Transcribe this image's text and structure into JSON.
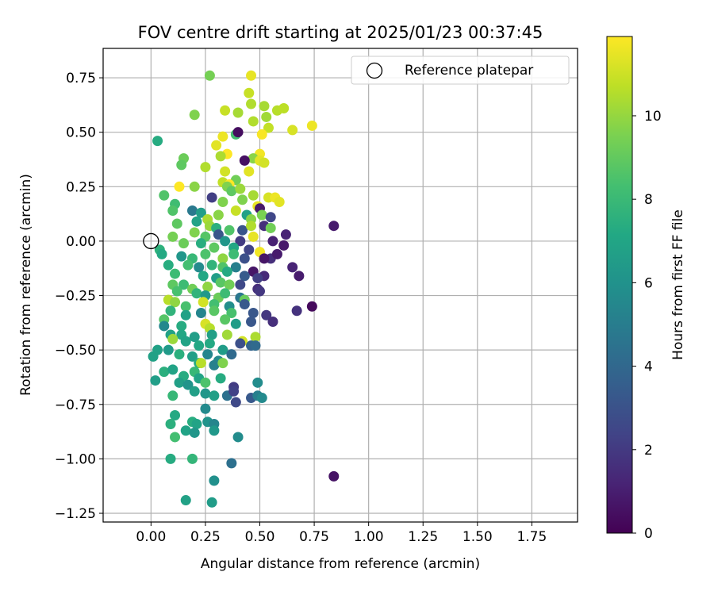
{
  "chart_data": {
    "type": "scatter",
    "title": "FOV centre drift starting at 2025/01/23 00:37:45",
    "xlabel": "Angular distance from reference (arcmin)",
    "ylabel": "Rotation from reference (arcmin)",
    "xlim": [
      -0.22,
      1.96
    ],
    "ylim": [
      -1.29,
      0.885
    ],
    "xticks": [
      0.0,
      0.25,
      0.5,
      0.75,
      1.0,
      1.25,
      1.5,
      1.75
    ],
    "xtick_labels": [
      "0.00",
      "0.25",
      "0.50",
      "0.75",
      "1.00",
      "1.25",
      "1.50",
      "1.75"
    ],
    "yticks": [
      0.75,
      0.5,
      0.25,
      0.0,
      -0.25,
      -0.5,
      -0.75,
      -1.0,
      -1.25
    ],
    "ytick_labels": [
      "0.75",
      "0.50",
      "0.25",
      "0.00",
      "−0.25",
      "−0.50",
      "−0.75",
      "−1.00",
      "−1.25"
    ],
    "grid": true,
    "legend": {
      "position": "top-right",
      "entries": [
        "Reference platepar"
      ]
    },
    "reference_point": {
      "x": 0.0,
      "y": 0.0,
      "label": "Reference platepar"
    },
    "colorbar": {
      "label": "Hours from first FF file",
      "colormap": "viridis",
      "range": [
        0,
        11.9
      ],
      "ticks": [
        0,
        2,
        4,
        6,
        8,
        10
      ],
      "tick_labels": [
        "0",
        "2",
        "4",
        "6",
        "8",
        "10"
      ]
    },
    "points": [
      [
        0.46,
        0.76,
        11.5
      ],
      [
        0.27,
        0.76,
        9.4
      ],
      [
        0.45,
        0.68,
        10.9
      ],
      [
        0.46,
        0.63,
        10.5
      ],
      [
        0.52,
        0.62,
        10.3
      ],
      [
        0.58,
        0.6,
        10.6
      ],
      [
        0.61,
        0.61,
        10.7
      ],
      [
        0.34,
        0.6,
        10.9
      ],
      [
        0.53,
        0.57,
        10.2
      ],
      [
        0.2,
        0.58,
        9.6
      ],
      [
        0.4,
        0.59,
        10.3
      ],
      [
        0.47,
        0.55,
        10.5
      ],
      [
        0.54,
        0.52,
        10.8
      ],
      [
        0.65,
        0.51,
        11.2
      ],
      [
        0.74,
        0.53,
        11.6
      ],
      [
        0.51,
        0.49,
        11.8
      ],
      [
        0.39,
        0.49,
        8.3
      ],
      [
        0.4,
        0.5,
        0.4
      ],
      [
        0.03,
        0.46,
        7.3
      ],
      [
        0.33,
        0.48,
        11.6
      ],
      [
        0.3,
        0.44,
        11.4
      ],
      [
        0.35,
        0.4,
        11.9
      ],
      [
        0.32,
        0.39,
        10.4
      ],
      [
        0.5,
        0.4,
        11.7
      ],
      [
        0.47,
        0.38,
        9.8
      ],
      [
        0.43,
        0.37,
        0.5
      ],
      [
        0.5,
        0.37,
        11.4
      ],
      [
        0.52,
        0.36,
        11.1
      ],
      [
        0.15,
        0.38,
        9.2
      ],
      [
        0.14,
        0.35,
        8.9
      ],
      [
        0.25,
        0.34,
        10.5
      ],
      [
        0.34,
        0.32,
        11.1
      ],
      [
        0.45,
        0.32,
        11.4
      ],
      [
        0.39,
        0.28,
        9.3
      ],
      [
        0.33,
        0.27,
        10.8
      ],
      [
        0.36,
        0.26,
        11.9
      ],
      [
        0.13,
        0.25,
        11.9
      ],
      [
        0.2,
        0.25,
        9.8
      ],
      [
        0.35,
        0.25,
        9.6
      ],
      [
        0.37,
        0.23,
        8.9
      ],
      [
        0.41,
        0.24,
        10.1
      ],
      [
        0.47,
        0.21,
        10.3
      ],
      [
        0.54,
        0.2,
        11.2
      ],
      [
        0.57,
        0.2,
        11.6
      ],
      [
        0.59,
        0.18,
        11.4
      ],
      [
        0.06,
        0.21,
        8.6
      ],
      [
        0.28,
        0.2,
        2.2
      ],
      [
        0.33,
        0.18,
        9.6
      ],
      [
        0.42,
        0.19,
        9.6
      ],
      [
        0.49,
        0.16,
        11.5
      ],
      [
        0.5,
        0.15,
        0.8
      ],
      [
        0.11,
        0.17,
        8.2
      ],
      [
        0.1,
        0.14,
        8.6
      ],
      [
        0.19,
        0.14,
        4.8
      ],
      [
        0.23,
        0.13,
        6.6
      ],
      [
        0.26,
        0.1,
        10.4
      ],
      [
        0.31,
        0.12,
        9.8
      ],
      [
        0.39,
        0.14,
        10.9
      ],
      [
        0.44,
        0.12,
        6.8
      ],
      [
        0.46,
        0.1,
        9.8
      ],
      [
        0.51,
        0.12,
        9.5
      ],
      [
        0.55,
        0.11,
        2.5
      ],
      [
        0.12,
        0.08,
        8.9
      ],
      [
        0.21,
        0.09,
        6.9
      ],
      [
        0.27,
        0.07,
        10.1
      ],
      [
        0.3,
        0.06,
        7.5
      ],
      [
        0.36,
        0.05,
        8.6
      ],
      [
        0.42,
        0.05,
        3.1
      ],
      [
        0.46,
        0.07,
        10.5
      ],
      [
        0.52,
        0.07,
        1.6
      ],
      [
        0.55,
        0.06,
        9.3
      ],
      [
        0.62,
        0.03,
        1.2
      ],
      [
        0.84,
        0.07,
        0.9
      ],
      [
        0.1,
        0.02,
        9.4
      ],
      [
        0.2,
        0.04,
        9.6
      ],
      [
        0.25,
        0.02,
        8.7
      ],
      [
        0.31,
        0.03,
        3.2
      ],
      [
        0.34,
        0.0,
        6.2
      ],
      [
        0.41,
        0.0,
        2.1
      ],
      [
        0.47,
        0.02,
        11.5
      ],
      [
        0.56,
        0.0,
        1.1
      ],
      [
        0.61,
        -0.02,
        0.8
      ],
      [
        0.15,
        -0.01,
        9.2
      ],
      [
        0.23,
        -0.01,
        7.4
      ],
      [
        0.29,
        -0.03,
        8.9
      ],
      [
        0.38,
        -0.03,
        7.1
      ],
      [
        0.45,
        -0.04,
        2.4
      ],
      [
        0.5,
        -0.05,
        11.7
      ],
      [
        0.55,
        -0.08,
        1.6
      ],
      [
        0.04,
        -0.04,
        7.6
      ],
      [
        0.05,
        -0.06,
        7.2
      ],
      [
        0.14,
        -0.07,
        6.2
      ],
      [
        0.19,
        -0.08,
        7.9
      ],
      [
        0.25,
        -0.06,
        8.5
      ],
      [
        0.33,
        -0.08,
        9.9
      ],
      [
        0.38,
        -0.06,
        8.1
      ],
      [
        0.43,
        -0.08,
        2.9
      ],
      [
        0.52,
        -0.08,
        0.7
      ],
      [
        0.58,
        -0.06,
        0.9
      ],
      [
        0.08,
        -0.11,
        7.4
      ],
      [
        0.17,
        -0.11,
        8.3
      ],
      [
        0.22,
        -0.12,
        5.6
      ],
      [
        0.28,
        -0.11,
        7.7
      ],
      [
        0.33,
        -0.12,
        8.6
      ],
      [
        0.39,
        -0.12,
        5.1
      ],
      [
        0.47,
        -0.14,
        0.7
      ],
      [
        0.52,
        -0.16,
        1.4
      ],
      [
        0.65,
        -0.12,
        1.2
      ],
      [
        0.68,
        -0.16,
        0.9
      ],
      [
        0.11,
        -0.15,
        8.1
      ],
      [
        0.24,
        -0.16,
        7.1
      ],
      [
        0.3,
        -0.17,
        6.6
      ],
      [
        0.35,
        -0.14,
        7.2
      ],
      [
        0.43,
        -0.16,
        3.4
      ],
      [
        0.49,
        -0.17,
        2.2
      ],
      [
        0.1,
        -0.2,
        8.9
      ],
      [
        0.15,
        -0.2,
        8.1
      ],
      [
        0.19,
        -0.22,
        9.3
      ],
      [
        0.26,
        -0.21,
        9.9
      ],
      [
        0.32,
        -0.19,
        8.8
      ],
      [
        0.36,
        -0.2,
        9.3
      ],
      [
        0.41,
        -0.2,
        2.6
      ],
      [
        0.49,
        -0.22,
        1.6
      ],
      [
        0.5,
        -0.23,
        1.9
      ],
      [
        0.12,
        -0.23,
        8.4
      ],
      [
        0.21,
        -0.24,
        7.7
      ],
      [
        0.25,
        -0.25,
        6.3
      ],
      [
        0.31,
        -0.26,
        9.2
      ],
      [
        0.34,
        -0.24,
        8.1
      ],
      [
        0.41,
        -0.26,
        4.7
      ],
      [
        0.43,
        -0.27,
        9.1
      ],
      [
        0.08,
        -0.27,
        10.6
      ],
      [
        0.11,
        -0.28,
        9.9
      ],
      [
        0.16,
        -0.3,
        8.4
      ],
      [
        0.24,
        -0.28,
        11.1
      ],
      [
        0.29,
        -0.29,
        8.3
      ],
      [
        0.36,
        -0.3,
        5.8
      ],
      [
        0.43,
        -0.29,
        3.3
      ],
      [
        0.67,
        -0.32,
        1.7
      ],
      [
        0.74,
        -0.3,
        0.3
      ],
      [
        0.09,
        -0.32,
        7.7
      ],
      [
        0.16,
        -0.34,
        6.8
      ],
      [
        0.23,
        -0.33,
        5.4
      ],
      [
        0.29,
        -0.32,
        8.8
      ],
      [
        0.37,
        -0.33,
        8.4
      ],
      [
        0.47,
        -0.33,
        3.2
      ],
      [
        0.53,
        -0.34,
        1.9
      ],
      [
        0.56,
        -0.37,
        1.6
      ],
      [
        0.06,
        -0.36,
        8.7
      ],
      [
        0.06,
        -0.39,
        5.5
      ],
      [
        0.14,
        -0.39,
        7.3
      ],
      [
        0.25,
        -0.38,
        11.2
      ],
      [
        0.27,
        -0.4,
        10.6
      ],
      [
        0.34,
        -0.36,
        8.8
      ],
      [
        0.39,
        -0.38,
        6.5
      ],
      [
        0.46,
        -0.37,
        3.2
      ],
      [
        0.09,
        -0.43,
        6.8
      ],
      [
        0.14,
        -0.43,
        7.1
      ],
      [
        0.2,
        -0.44,
        6.6
      ],
      [
        0.28,
        -0.43,
        6.7
      ],
      [
        0.35,
        -0.43,
        10.2
      ],
      [
        0.42,
        -0.46,
        11.1
      ],
      [
        0.48,
        -0.44,
        10.4
      ],
      [
        0.1,
        -0.45,
        10.1
      ],
      [
        0.16,
        -0.46,
        6.9
      ],
      [
        0.22,
        -0.48,
        7.1
      ],
      [
        0.27,
        -0.47,
        7.2
      ],
      [
        0.33,
        -0.5,
        6.5
      ],
      [
        0.41,
        -0.47,
        2.9
      ],
      [
        0.46,
        -0.48,
        3.8
      ],
      [
        0.48,
        -0.48,
        4.1
      ],
      [
        0.01,
        -0.53,
        6.8
      ],
      [
        0.03,
        -0.5,
        6.8
      ],
      [
        0.08,
        -0.5,
        6.4
      ],
      [
        0.13,
        -0.52,
        7.5
      ],
      [
        0.19,
        -0.53,
        6.7
      ],
      [
        0.22,
        -0.56,
        7.3
      ],
      [
        0.26,
        -0.52,
        5.4
      ],
      [
        0.31,
        -0.55,
        5.6
      ],
      [
        0.37,
        -0.52,
        4.1
      ],
      [
        0.06,
        -0.6,
        7.5
      ],
      [
        0.1,
        -0.59,
        6.9
      ],
      [
        0.15,
        -0.62,
        7.3
      ],
      [
        0.2,
        -0.6,
        7.9
      ],
      [
        0.23,
        -0.56,
        10.6
      ],
      [
        0.29,
        -0.57,
        5.2
      ],
      [
        0.33,
        -0.56,
        9.6
      ],
      [
        0.02,
        -0.64,
        6.6
      ],
      [
        0.13,
        -0.65,
        6.7
      ],
      [
        0.17,
        -0.66,
        6.1
      ],
      [
        0.22,
        -0.63,
        6.9
      ],
      [
        0.25,
        -0.65,
        8.5
      ],
      [
        0.32,
        -0.63,
        7.3
      ],
      [
        0.38,
        -0.67,
        2.1
      ],
      [
        0.49,
        -0.65,
        5.7
      ],
      [
        0.1,
        -0.71,
        7.9
      ],
      [
        0.2,
        -0.69,
        6.7
      ],
      [
        0.25,
        -0.7,
        6.2
      ],
      [
        0.29,
        -0.71,
        6.7
      ],
      [
        0.35,
        -0.71,
        4.4
      ],
      [
        0.38,
        -0.69,
        2.3
      ],
      [
        0.46,
        -0.72,
        3.3
      ],
      [
        0.49,
        -0.71,
        5.1
      ],
      [
        0.51,
        -0.72,
        5.6
      ],
      [
        0.39,
        -0.74,
        2.6
      ],
      [
        0.25,
        -0.77,
        5.6
      ],
      [
        0.11,
        -0.8,
        7.2
      ],
      [
        0.09,
        -0.84,
        7.5
      ],
      [
        0.19,
        -0.83,
        7.4
      ],
      [
        0.21,
        -0.84,
        6.9
      ],
      [
        0.26,
        -0.83,
        6.1
      ],
      [
        0.29,
        -0.84,
        5.4
      ],
      [
        0.11,
        -0.9,
        8.3
      ],
      [
        0.16,
        -0.87,
        6.9
      ],
      [
        0.2,
        -0.88,
        6.2
      ],
      [
        0.29,
        -0.87,
        6.3
      ],
      [
        0.4,
        -0.9,
        5.7
      ],
      [
        0.09,
        -1.0,
        7.3
      ],
      [
        0.19,
        -1.0,
        7.8
      ],
      [
        0.37,
        -1.02,
        4.4
      ],
      [
        0.84,
        -1.08,
        0.6
      ],
      [
        0.29,
        -1.1,
        5.9
      ],
      [
        0.16,
        -1.19,
        6.8
      ],
      [
        0.28,
        -1.2,
        6.5
      ]
    ]
  }
}
